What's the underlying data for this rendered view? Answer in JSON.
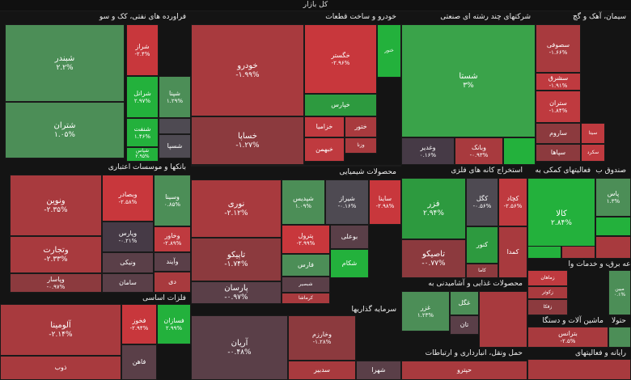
{
  "title": "کل بازار",
  "sectors": [
    {
      "name": "فراورده های نفتی، کک و سو",
      "tiles": [
        {
          "n": "شبندر",
          "v": "۲.۲%",
          "c": "g1",
          "s": "big"
        },
        {
          "n": "شتران",
          "v": "۱.۰۵%",
          "c": "g1",
          "s": "big"
        },
        {
          "n": "شراز",
          "v": "-۲.۴%",
          "c": "r4"
        },
        {
          "n": "شرانل",
          "v": "۲.۹۷%",
          "c": "g4"
        },
        {
          "n": "شپنا",
          "v": "۱.۲۹%",
          "c": "g1"
        },
        {
          "n": "شنفت",
          "v": "۱.۴۶%",
          "c": "g4"
        },
        {
          "n": "",
          "v": "",
          "c": "n1"
        },
        {
          "n": "شپاس",
          "v": "۲.۹۵%",
          "c": "g4"
        },
        {
          "n": "شسپا",
          "v": "",
          "c": "n1"
        }
      ]
    },
    {
      "name": "خودرو و ساخت قطعات",
      "tiles": [
        {
          "n": "خودرو",
          "v": "-۱.۹۹%",
          "c": "r2",
          "s": "big"
        },
        {
          "n": "خساپا",
          "v": "-۱.۲۷%",
          "c": "r1",
          "s": "big"
        },
        {
          "n": "خگستر",
          "v": "-۲.۹۶%",
          "c": "r4"
        },
        {
          "n": "خنور",
          "v": "",
          "c": "g4"
        },
        {
          "n": "خپارس",
          "v": "",
          "c": "g3"
        },
        {
          "n": "خزامیا",
          "v": "",
          "c": "r3"
        },
        {
          "n": "ختور",
          "v": "",
          "c": "r2"
        },
        {
          "n": "خبهمن",
          "v": "",
          "c": "r3"
        },
        {
          "n": "وزنا",
          "v": "",
          "c": "r2"
        }
      ]
    },
    {
      "name": "شرکتهای چند رشته ای صنعتی",
      "tiles": [
        {
          "n": "شستا",
          "v": "۳%",
          "c": "g2",
          "s": "big"
        },
        {
          "n": "وغدیر",
          "v": "۰.۱۶%",
          "c": "n3"
        },
        {
          "n": "وبانک",
          "v": "-۰.۹۳%",
          "c": "r2"
        },
        {
          "n": "",
          "v": "",
          "c": "g4"
        }
      ]
    },
    {
      "name": "سیمان، آهک و گچ",
      "tiles": [
        {
          "n": "سصوفی",
          "v": "-۱.۶۶%",
          "c": "r2"
        },
        {
          "n": "سشرق",
          "v": "-۱.۹۱%",
          "c": "r3"
        },
        {
          "n": "ستران",
          "v": "-۱.۸۴%",
          "c": "r3"
        },
        {
          "n": "ساروم",
          "v": "",
          "c": "r1"
        },
        {
          "n": "سپاها",
          "v": "",
          "c": "r1"
        },
        {
          "n": "سیتا",
          "v": "",
          "c": "r3"
        },
        {
          "n": "سکرد",
          "v": "",
          "c": "r3"
        }
      ]
    },
    {
      "name": "بانکها و موسسات اعتباری",
      "tiles": [
        {
          "n": "ونوین",
          "v": "-۲.۳۵%",
          "c": "r2",
          "s": "big"
        },
        {
          "n": "وتجارت",
          "v": "-۲.۳۳%",
          "c": "r2",
          "s": "big"
        },
        {
          "n": "وپاسار",
          "v": "-۰.۹۷%",
          "c": "r1"
        },
        {
          "n": "وبصادر",
          "v": "-۲.۵۸%",
          "c": "r4"
        },
        {
          "n": "وپارس",
          "v": "-۰.۲۱%",
          "c": "n3"
        },
        {
          "n": "ونیکی",
          "v": "",
          "c": "n2"
        },
        {
          "n": "سامان",
          "v": "",
          "c": "n2"
        },
        {
          "n": "وسینا",
          "v": "۰.۸۵%",
          "c": "g1"
        },
        {
          "n": "وخاور",
          "v": "-۲.۸۹%",
          "c": "r3"
        },
        {
          "n": "وآیند",
          "v": "",
          "c": "n2"
        },
        {
          "n": "دی",
          "v": "",
          "c": "r2"
        }
      ]
    },
    {
      "name": "محصولات شیمیایی",
      "tiles": [
        {
          "n": "نوری",
          "v": "-۲.۱۲%",
          "c": "r2",
          "s": "big"
        },
        {
          "n": "تاپیکو",
          "v": "-۱.۷۴%",
          "c": "r1",
          "s": "big"
        },
        {
          "n": "پارسان",
          "v": "-۰.۹۷%",
          "c": "n2",
          "s": "big"
        },
        {
          "n": "شپدیس",
          "v": "۱.۰۹%",
          "c": "g1"
        },
        {
          "n": "شیراز",
          "v": "-۰.۱۶%",
          "c": "n1"
        },
        {
          "n": "ساینا",
          "v": "-۲.۹۸%",
          "c": "r4"
        },
        {
          "n": "پترول",
          "v": "-۲.۹۹%",
          "c": "r4"
        },
        {
          "n": "بوعلی",
          "v": "",
          "c": "n2"
        },
        {
          "n": "فارس",
          "v": "",
          "c": "g1"
        },
        {
          "n": "شکام",
          "v": "",
          "c": "g4"
        },
        {
          "n": "شبصیر",
          "v": "",
          "c": "n2"
        },
        {
          "n": "کرماشا",
          "v": "",
          "c": "r2"
        }
      ]
    },
    {
      "name": "استخراج کانه های فلزی",
      "tiles": [
        {
          "n": "فزر",
          "v": "۲.۹۴%",
          "c": "g3",
          "s": "big"
        },
        {
          "n": "تاصیکو",
          "v": "-۰.۷۷%",
          "c": "r1",
          "s": "big"
        },
        {
          "n": "کگل",
          "v": "-۰.۵۶%",
          "c": "n1"
        },
        {
          "n": "کچاد",
          "v": "-۲.۵۶%",
          "c": "r3"
        },
        {
          "n": "کنور",
          "v": "",
          "c": "g3"
        },
        {
          "n": "کاما",
          "v": "",
          "c": "r1"
        },
        {
          "n": "کمدا",
          "v": "",
          "c": "r2"
        }
      ]
    },
    {
      "name": "فعالیتهای کمکی به",
      "tiles": [
        {
          "n": "کالا",
          "v": "۲.۸۴%",
          "c": "g4",
          "s": "big"
        },
        {
          "n": "",
          "v": "",
          "c": "g4"
        },
        {
          "n": "",
          "v": "",
          "c": "r2"
        }
      ]
    },
    {
      "name": "صندوق ب",
      "tiles": [
        {
          "n": "پاس",
          "v": "۱.۳%",
          "c": "g1"
        },
        {
          "n": "",
          "v": "",
          "c": "g4"
        },
        {
          "n": "",
          "v": "",
          "c": "r2"
        }
      ]
    },
    {
      "name": "فلزات اساسی",
      "tiles": [
        {
          "n": "آلومینا",
          "v": "-۲.۱۴%",
          "c": "r2",
          "s": "big"
        },
        {
          "n": "فخوز",
          "v": "-۲.۹۴%",
          "c": "r4"
        },
        {
          "n": "فسازان",
          "v": "۲.۹۹%",
          "c": "g4"
        },
        {
          "n": "فاهن",
          "v": "",
          "c": "n2"
        },
        {
          "n": "ذوب",
          "v": "",
          "c": "r2"
        }
      ]
    },
    {
      "name": "سرمایه گذاریها",
      "tiles": [
        {
          "n": "آریان",
          "v": "-۰.۴۸%",
          "c": "n2",
          "s": "big"
        },
        {
          "n": "وخارزم",
          "v": "-۱.۲۸%",
          "c": "r1"
        },
        {
          "n": "سدبیر",
          "v": "",
          "c": "r2"
        },
        {
          "n": "شهرا",
          "v": "",
          "c": "n2"
        }
      ]
    },
    {
      "name": "محصولات غذایی و آشامیدنی به",
      "tiles": [
        {
          "n": "غزر",
          "v": "۱.۲۳%",
          "c": "g1"
        },
        {
          "n": "غگل",
          "v": "",
          "c": "g1"
        },
        {
          "n": "تان",
          "v": "",
          "c": "n2"
        },
        {
          "n": "",
          "v": "",
          "c": "r2"
        }
      ]
    },
    {
      "name": "حمل ونقل، انبارداری و ارتباطات",
      "tiles": [
        {
          "n": "حپترو",
          "v": "",
          "c": "r2"
        }
      ]
    },
    {
      "name": "زراعت و خدمات وا",
      "tiles": [
        {
          "n": "زماهان",
          "v": "",
          "c": "r3"
        },
        {
          "n": "زکوثر",
          "v": "",
          "c": "r2"
        },
        {
          "n": "زفکا",
          "v": "",
          "c": "r1"
        }
      ]
    },
    {
      "name": "ماشین آلات و دستگا",
      "tiles": [
        {
          "n": "بترانس",
          "v": "-۲.۵%",
          "c": "r2"
        }
      ]
    },
    {
      "name": "رایانه و فعالیتهای",
      "tiles": [
        {
          "n": "",
          "v": "",
          "c": "r2"
        }
      ]
    },
    {
      "name": "عه برق",
      "tiles": [
        {
          "n": "مبین",
          "v": "۰.۱%",
          "c": "g1"
        }
      ]
    },
    {
      "name": "حتولا",
      "tiles": [
        {
          "n": "",
          "v": "",
          "c": "g1"
        }
      ]
    }
  ]
}
